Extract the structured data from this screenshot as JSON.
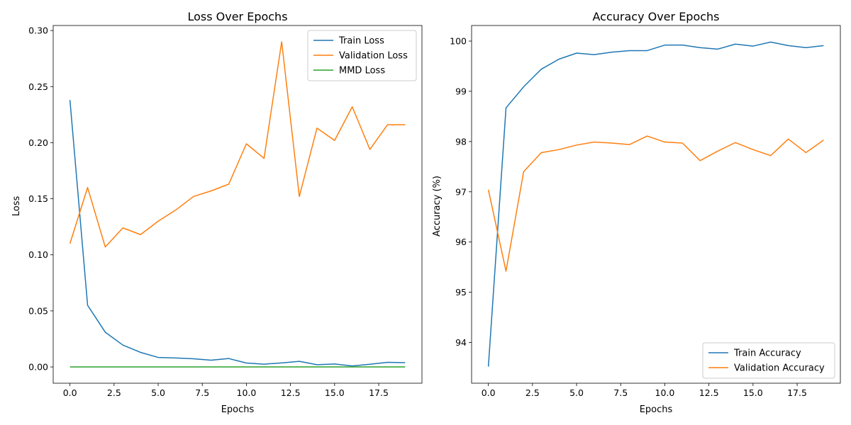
{
  "chart_data": [
    {
      "type": "line",
      "title": "Loss Over Epochs",
      "xlabel": "Epochs",
      "ylabel": "Loss",
      "xlim": [
        -0.95,
        19.95
      ],
      "ylim": [
        -0.0145,
        0.3045
      ],
      "xticks": [
        0,
        2.5,
        5,
        7.5,
        10,
        12.5,
        15,
        17.5
      ],
      "xtick_labels": [
        "0.0",
        "2.5",
        "5.0",
        "7.5",
        "10.0",
        "12.5",
        "15.0",
        "17.5"
      ],
      "yticks": [
        0,
        0.05,
        0.1,
        0.15,
        0.2,
        0.25,
        0.3
      ],
      "ytick_labels": [
        "0.00",
        "0.05",
        "0.10",
        "0.15",
        "0.20",
        "0.25",
        "0.30"
      ],
      "legend_position": "upper right",
      "x": [
        0,
        1,
        2,
        3,
        4,
        5,
        6,
        7,
        8,
        9,
        10,
        11,
        12,
        13,
        14,
        15,
        16,
        17,
        18,
        19
      ],
      "series": [
        {
          "name": "Train Loss",
          "color": "#1f77b4",
          "values": [
            0.238,
            0.055,
            0.031,
            0.0195,
            0.013,
            0.0085,
            0.008,
            0.0073,
            0.006,
            0.0075,
            0.0035,
            0.0025,
            0.0036,
            0.005,
            0.002,
            0.0026,
            0.0009,
            0.0024,
            0.0041,
            0.0038
          ]
        },
        {
          "name": "Validation Loss",
          "color": "#ff7f0e",
          "values": [
            0.11,
            0.16,
            0.107,
            0.124,
            0.118,
            0.13,
            0.14,
            0.152,
            0.157,
            0.163,
            0.199,
            0.186,
            0.29,
            0.152,
            0.213,
            0.202,
            0.232,
            0.194,
            0.216,
            0.216
          ]
        },
        {
          "name": "MMD Loss",
          "color": "#2ca02c",
          "values": [
            0,
            0,
            0,
            0,
            0,
            0,
            0,
            0,
            0,
            0,
            0,
            0,
            0,
            0,
            0,
            0,
            0,
            0,
            0,
            0
          ]
        }
      ]
    },
    {
      "type": "line",
      "title": "Accuracy Over Epochs",
      "xlabel": "Epochs",
      "ylabel": "Accuracy (%)",
      "xlim": [
        -0.95,
        19.95
      ],
      "ylim": [
        93.19,
        100.31
      ],
      "xticks": [
        0,
        2.5,
        5,
        7.5,
        10,
        12.5,
        15,
        17.5
      ],
      "xtick_labels": [
        "0.0",
        "2.5",
        "5.0",
        "7.5",
        "10.0",
        "12.5",
        "15.0",
        "17.5"
      ],
      "yticks": [
        94,
        95,
        96,
        97,
        98,
        99,
        100
      ],
      "ytick_labels": [
        "94",
        "95",
        "96",
        "97",
        "98",
        "99",
        "100"
      ],
      "legend_position": "lower right",
      "x": [
        0,
        1,
        2,
        3,
        4,
        5,
        6,
        7,
        8,
        9,
        10,
        11,
        12,
        13,
        14,
        15,
        16,
        17,
        18,
        19
      ],
      "series": [
        {
          "name": "Train Accuracy",
          "color": "#1f77b4",
          "values": [
            93.52,
            98.67,
            99.09,
            99.44,
            99.64,
            99.76,
            99.73,
            99.78,
            99.81,
            99.81,
            99.92,
            99.92,
            99.87,
            99.84,
            99.94,
            99.9,
            99.98,
            99.91,
            99.87,
            99.91
          ]
        },
        {
          "name": "Validation Accuracy",
          "color": "#ff7f0e",
          "values": [
            97.04,
            95.42,
            97.4,
            97.78,
            97.84,
            97.93,
            97.99,
            97.97,
            97.94,
            98.11,
            97.99,
            97.97,
            97.62,
            97.81,
            97.98,
            97.84,
            97.72,
            98.05,
            97.78,
            98.03
          ]
        }
      ]
    }
  ]
}
